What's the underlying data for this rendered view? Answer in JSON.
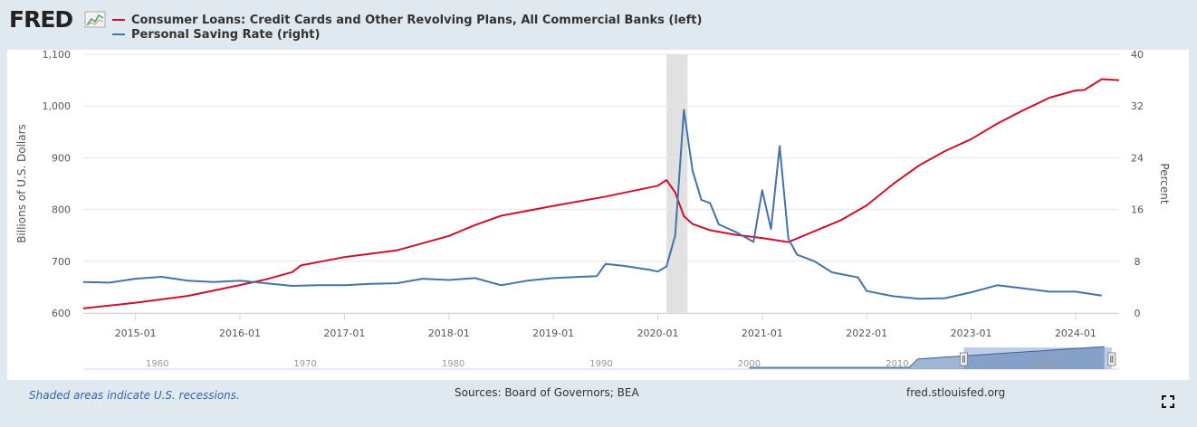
{
  "logo_text": "FRED",
  "legend": [
    {
      "label": "Consumer Loans: Credit Cards and Other Revolving Plans, All Commercial Banks (left)",
      "color": "#c9112e"
    },
    {
      "label": "Personal Saving Rate (right)",
      "color": "#4572a7"
    }
  ],
  "footer": {
    "note": "Shaded areas indicate U.S. recessions.",
    "sources": "Sources: Board of Governors; BEA",
    "site": "fred.stlouisfed.org"
  },
  "icons": {
    "logo": "fred-graph-icon",
    "fullscreen": "fullscreen-icon"
  },
  "chart_data": {
    "type": "line",
    "x_range": [
      "2014-07",
      "2024-06"
    ],
    "x_ticks": [
      "2015-01",
      "2016-01",
      "2017-01",
      "2018-01",
      "2019-01",
      "2020-01",
      "2021-01",
      "2022-01",
      "2023-01",
      "2024-01"
    ],
    "left_axis": {
      "label": "Billions of U.S. Dollars",
      "range": [
        600,
        1100
      ],
      "ticks": [
        "600",
        "700",
        "800",
        "900",
        "1,000",
        "1,100"
      ],
      "tick_values": [
        600,
        700,
        800,
        900,
        1000,
        1100
      ]
    },
    "right_axis": {
      "label": "Percent",
      "range": [
        0,
        40
      ],
      "ticks": [
        "0",
        "8",
        "16",
        "24",
        "32",
        "40"
      ],
      "tick_values": [
        0,
        8,
        16,
        24,
        32,
        40
      ]
    },
    "recessions": [
      {
        "start": "2020-02",
        "end": "2020-04"
      }
    ],
    "grid": true,
    "series": [
      {
        "name": "Consumer Loans: Credit Cards and Other Revolving Plans, All Commercial Banks (left)",
        "axis": "left",
        "color": "#c9112e",
        "points": [
          [
            "2014-07",
            609
          ],
          [
            "2015-01",
            620
          ],
          [
            "2015-07",
            633
          ],
          [
            "2016-01",
            654
          ],
          [
            "2016-04",
            665
          ],
          [
            "2016-07",
            679
          ],
          [
            "2016-08",
            692
          ],
          [
            "2017-01",
            708
          ],
          [
            "2017-07",
            721
          ],
          [
            "2018-01",
            749
          ],
          [
            "2018-04",
            770
          ],
          [
            "2018-07",
            788
          ],
          [
            "2019-01",
            807
          ],
          [
            "2019-07",
            825
          ],
          [
            "2019-11",
            839
          ],
          [
            "2020-01",
            846
          ],
          [
            "2020-02",
            857
          ],
          [
            "2020-03",
            833
          ],
          [
            "2020-04",
            787
          ],
          [
            "2020-05",
            772
          ],
          [
            "2020-07",
            760
          ],
          [
            "2020-10",
            751
          ],
          [
            "2021-01",
            745
          ],
          [
            "2021-04",
            737
          ],
          [
            "2021-07",
            758
          ],
          [
            "2021-10",
            779
          ],
          [
            "2022-01",
            808
          ],
          [
            "2022-04",
            849
          ],
          [
            "2022-07",
            885
          ],
          [
            "2022-10",
            913
          ],
          [
            "2023-01",
            936
          ],
          [
            "2023-04",
            966
          ],
          [
            "2023-07",
            992
          ],
          [
            "2023-10",
            1016
          ],
          [
            "2024-01",
            1030
          ],
          [
            "2024-02",
            1031
          ],
          [
            "2024-04",
            1052
          ],
          [
            "2024-06",
            1050
          ]
        ]
      },
      {
        "name": "Personal Saving Rate (right)",
        "axis": "right",
        "color": "#4572a7",
        "points": [
          [
            "2014-07",
            4.8
          ],
          [
            "2014-10",
            4.7
          ],
          [
            "2015-01",
            5.3
          ],
          [
            "2015-04",
            5.6
          ],
          [
            "2015-07",
            5.0
          ],
          [
            "2015-10",
            4.8
          ],
          [
            "2016-01",
            5.0
          ],
          [
            "2016-04",
            4.6
          ],
          [
            "2016-07",
            4.2
          ],
          [
            "2016-10",
            4.3
          ],
          [
            "2017-01",
            4.3
          ],
          [
            "2017-04",
            4.5
          ],
          [
            "2017-07",
            4.6
          ],
          [
            "2017-10",
            5.3
          ],
          [
            "2018-01",
            5.1
          ],
          [
            "2018-04",
            5.4
          ],
          [
            "2018-07",
            4.3
          ],
          [
            "2018-10",
            5.0
          ],
          [
            "2019-01",
            5.4
          ],
          [
            "2019-04",
            5.6
          ],
          [
            "2019-06",
            5.7
          ],
          [
            "2019-07",
            7.6
          ],
          [
            "2019-09",
            7.3
          ],
          [
            "2019-12",
            6.7
          ],
          [
            "2020-01",
            6.4
          ],
          [
            "2020-02",
            7.2
          ],
          [
            "2020-03",
            12.0
          ],
          [
            "2020-04",
            31.4
          ],
          [
            "2020-05",
            22.0
          ],
          [
            "2020-06",
            17.5
          ],
          [
            "2020-07",
            17.0
          ],
          [
            "2020-08",
            13.7
          ],
          [
            "2020-10",
            12.5
          ],
          [
            "2020-12",
            11.0
          ],
          [
            "2021-01",
            19.0
          ],
          [
            "2021-02",
            13.0
          ],
          [
            "2021-03",
            25.8
          ],
          [
            "2021-04",
            11.5
          ],
          [
            "2021-05",
            9.0
          ],
          [
            "2021-07",
            8.0
          ],
          [
            "2021-09",
            6.3
          ],
          [
            "2021-12",
            5.5
          ],
          [
            "2022-01",
            3.4
          ],
          [
            "2022-04",
            2.6
          ],
          [
            "2022-07",
            2.2
          ],
          [
            "2022-10",
            2.3
          ],
          [
            "2023-01",
            3.2
          ],
          [
            "2023-04",
            4.3
          ],
          [
            "2023-07",
            3.8
          ],
          [
            "2023-10",
            3.3
          ],
          [
            "2024-01",
            3.3
          ],
          [
            "2024-04",
            2.7
          ]
        ]
      }
    ]
  },
  "navigator": {
    "labels": [
      "1960",
      "1970",
      "1980",
      "1990",
      "2000",
      "2010",
      "2020"
    ],
    "range_years": [
      1955,
      2025
    ],
    "window": [
      2014.5,
      2024.5
    ]
  }
}
